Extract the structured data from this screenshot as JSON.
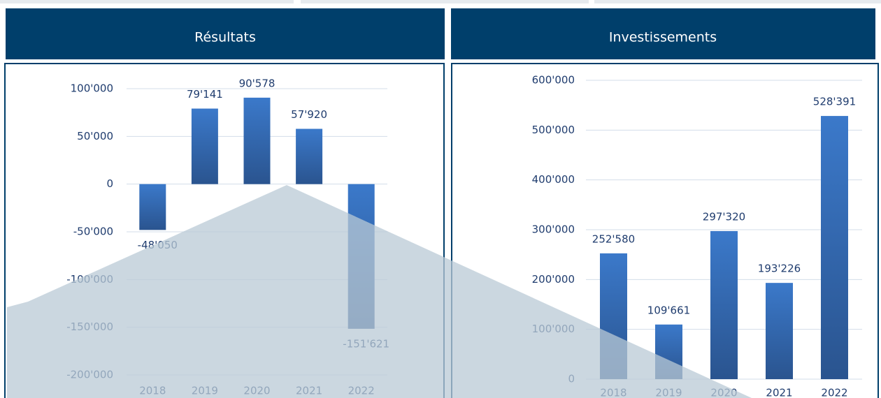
{
  "chart_data": [
    {
      "type": "bar",
      "title": "Résultats",
      "categories": [
        "2018",
        "2019",
        "2020",
        "2021",
        "2022"
      ],
      "values": [
        -48050,
        79141,
        90578,
        57920,
        -151621
      ],
      "value_labels": [
        "-48'050",
        "79'141",
        "90'578",
        "57'920",
        "-151'621"
      ],
      "color": "#3b76c4",
      "ylim": [
        -200000,
        100000
      ],
      "yticks": [
        {
          "value": 100000,
          "label": "100'000"
        },
        {
          "value": 50000,
          "label": "50'000"
        },
        0,
        {
          "value": -50000,
          "label": "-50'000"
        },
        {
          "value": -100000,
          "label": "-100'000"
        },
        {
          "value": -150000,
          "label": "-150'000"
        },
        {
          "value": -200000,
          "label": "-200'000"
        }
      ],
      "grid": true
    },
    {
      "type": "bar",
      "title": "Investissements",
      "categories": [
        "2018",
        "2019",
        "2020",
        "2021",
        "2022"
      ],
      "values": [
        252580,
        109661,
        297320,
        193226,
        528391
      ],
      "value_labels": [
        "252'580",
        "109'661",
        "297'320",
        "193'226",
        "528'391"
      ],
      "color": "#3b76c4",
      "ylim": [
        0,
        600000
      ],
      "yticks": [
        0,
        {
          "value": 100000,
          "label": "100'000"
        },
        {
          "value": 200000,
          "label": "200'000"
        },
        {
          "value": 300000,
          "label": "300'000"
        },
        {
          "value": 400000,
          "label": "400'000"
        },
        {
          "value": 500000,
          "label": "500'000"
        },
        {
          "value": 600000,
          "label": "600'000"
        }
      ],
      "grid": true
    }
  ]
}
